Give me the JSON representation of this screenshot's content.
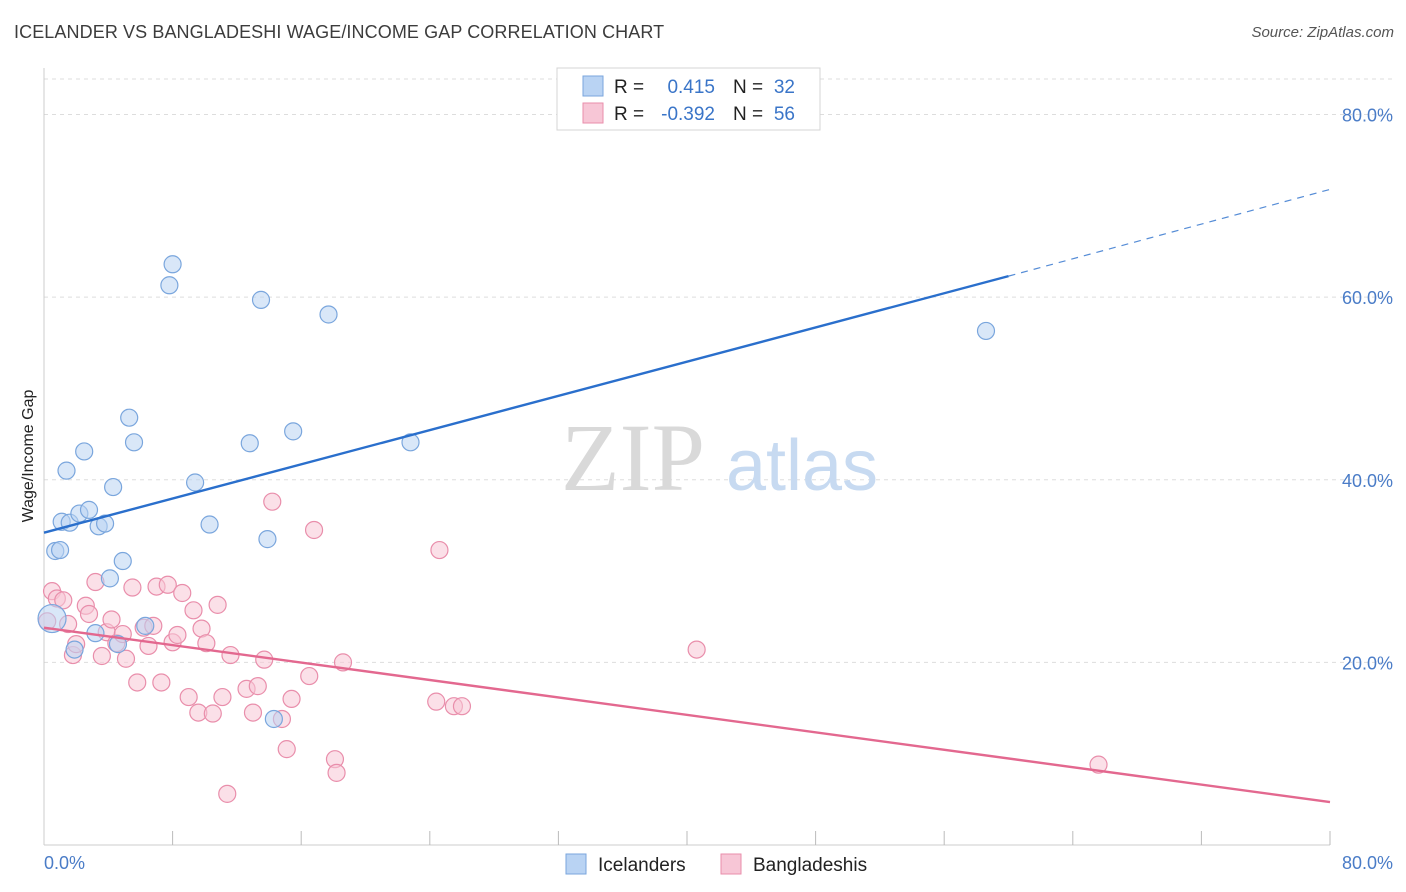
{
  "title": "ICELANDER VS BANGLADESHI WAGE/INCOME GAP CORRELATION CHART",
  "source": "Source: ZipAtlas.com",
  "watermark": {
    "zip": "ZIP",
    "atlas": "atlas"
  },
  "legend": {
    "rows": [
      {
        "r_label": "R =",
        "r_value": "0.415",
        "n_label": "N =",
        "n_value": "32"
      },
      {
        "r_label": "R =",
        "r_value": "-0.392",
        "n_label": "N =",
        "n_value": "56"
      }
    ]
  },
  "bottom_legend": [
    "Icelanders",
    "Bangladeshis"
  ],
  "colors": {
    "blue_fill": "#b9d3f3",
    "blue_stroke": "#7aa6dd",
    "blue_line": "#2a6fcc",
    "pink_fill": "#f7c6d6",
    "pink_stroke": "#e98eab",
    "pink_line": "#e3688f",
    "grid": "#dddddd",
    "tick_label": "#4a7cc7"
  },
  "chart_data": {
    "type": "scatter",
    "title": "ICELANDER VS BANGLADESHI WAGE/INCOME GAP CORRELATION CHART",
    "xlabel": "",
    "ylabel": "Wage/Income Gap",
    "xlim": [
      0,
      80
    ],
    "ylim": [
      0,
      84
    ],
    "x_tick_labels": [
      "0.0%",
      "80.0%"
    ],
    "y_tick_labels": [
      "20.0%",
      "40.0%",
      "60.0%",
      "80.0%"
    ],
    "y_ticks": [
      20,
      40,
      60,
      80
    ],
    "grid": true,
    "series": [
      {
        "name": "Icelanders",
        "color": "#7aa6dd",
        "points": [
          [
            0.5,
            24.8
          ],
          [
            0.7,
            32.2
          ],
          [
            1.0,
            32.3
          ],
          [
            1.1,
            35.4
          ],
          [
            1.4,
            41.0
          ],
          [
            1.6,
            35.3
          ],
          [
            1.9,
            21.4
          ],
          [
            2.2,
            36.3
          ],
          [
            2.5,
            43.1
          ],
          [
            2.8,
            36.7
          ],
          [
            3.2,
            23.2
          ],
          [
            3.4,
            34.9
          ],
          [
            3.8,
            35.2
          ],
          [
            4.1,
            29.2
          ],
          [
            4.3,
            39.2
          ],
          [
            4.6,
            22.0
          ],
          [
            4.9,
            31.1
          ],
          [
            5.3,
            46.8
          ],
          [
            5.6,
            44.1
          ],
          [
            6.3,
            24.0
          ],
          [
            7.8,
            61.3
          ],
          [
            8.0,
            63.6
          ],
          [
            9.4,
            39.7
          ],
          [
            10.3,
            35.1
          ],
          [
            12.8,
            44.0
          ],
          [
            13.5,
            59.7
          ],
          [
            13.9,
            33.5
          ],
          [
            14.3,
            13.8
          ],
          [
            15.5,
            45.3
          ],
          [
            17.7,
            58.1
          ],
          [
            22.8,
            44.1
          ],
          [
            58.6,
            56.3
          ]
        ]
      },
      {
        "name": "Bangladeshis",
        "color": "#e98eab",
        "points": [
          [
            0.2,
            24.5
          ],
          [
            0.5,
            27.8
          ],
          [
            0.8,
            27.0
          ],
          [
            1.2,
            26.8
          ],
          [
            1.5,
            24.2
          ],
          [
            1.8,
            20.8
          ],
          [
            2.0,
            22.0
          ],
          [
            2.6,
            26.2
          ],
          [
            2.8,
            25.3
          ],
          [
            3.2,
            28.8
          ],
          [
            3.6,
            20.7
          ],
          [
            3.9,
            23.3
          ],
          [
            4.2,
            24.7
          ],
          [
            4.5,
            22.1
          ],
          [
            4.9,
            23.1
          ],
          [
            5.1,
            20.4
          ],
          [
            5.5,
            28.2
          ],
          [
            5.8,
            17.8
          ],
          [
            6.2,
            23.8
          ],
          [
            6.5,
            21.8
          ],
          [
            6.8,
            24.0
          ],
          [
            7.0,
            28.3
          ],
          [
            7.3,
            17.8
          ],
          [
            7.7,
            28.5
          ],
          [
            8.0,
            22.2
          ],
          [
            8.3,
            23.0
          ],
          [
            8.6,
            27.6
          ],
          [
            9.0,
            16.2
          ],
          [
            9.3,
            25.7
          ],
          [
            9.6,
            14.5
          ],
          [
            9.8,
            23.7
          ],
          [
            10.1,
            22.1
          ],
          [
            10.5,
            14.4
          ],
          [
            10.8,
            26.3
          ],
          [
            11.1,
            16.2
          ],
          [
            11.4,
            5.6
          ],
          [
            11.6,
            20.8
          ],
          [
            12.6,
            17.1
          ],
          [
            13.0,
            14.5
          ],
          [
            13.3,
            17.4
          ],
          [
            13.7,
            20.3
          ],
          [
            14.2,
            37.6
          ],
          [
            14.8,
            13.8
          ],
          [
            15.1,
            10.5
          ],
          [
            15.4,
            16.0
          ],
          [
            16.5,
            18.5
          ],
          [
            16.8,
            34.5
          ],
          [
            18.1,
            9.4
          ],
          [
            18.2,
            7.9
          ],
          [
            18.6,
            20.0
          ],
          [
            24.4,
            15.7
          ],
          [
            24.6,
            32.3
          ],
          [
            25.5,
            15.2
          ],
          [
            26.0,
            15.2
          ],
          [
            40.6,
            21.4
          ],
          [
            65.6,
            8.8
          ]
        ]
      }
    ],
    "trend_lines": [
      {
        "series": "Icelanders",
        "x_start": 0,
        "y_start": 34.2,
        "x_solid_end": 60,
        "y_solid_end": 62.3,
        "x_dash_end": 80,
        "y_dash_end": 71.8
      },
      {
        "series": "Bangladeshis",
        "x_start": 0,
        "y_start": 23.8,
        "x_end": 80,
        "y_end": 4.7
      }
    ]
  }
}
